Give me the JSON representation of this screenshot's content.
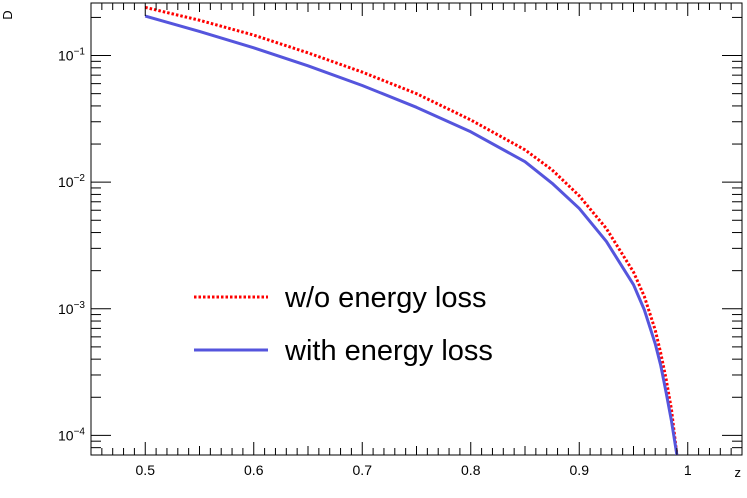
{
  "chart_data": {
    "type": "line",
    "xlabel": "z",
    "ylabel": "D",
    "xlim": [
      0.45,
      1.05
    ],
    "ylim": [
      7e-05,
      0.26
    ],
    "yscale": "log",
    "grid": false,
    "legend_position": "center",
    "x_ticks": [
      {
        "value": 0.5,
        "label": "0.5"
      },
      {
        "value": 0.6,
        "label": "0.6"
      },
      {
        "value": 0.7,
        "label": "0.7"
      },
      {
        "value": 0.8,
        "label": "0.8"
      },
      {
        "value": 0.9,
        "label": "0.9"
      },
      {
        "value": 1.0,
        "label": "1"
      }
    ],
    "y_ticks": [
      {
        "value": 0.0001,
        "base": "10",
        "exp": "−4"
      },
      {
        "value": 0.001,
        "base": "10",
        "exp": "−3"
      },
      {
        "value": 0.01,
        "base": "10",
        "exp": "−2"
      },
      {
        "value": 0.1,
        "base": "10",
        "exp": "−1"
      }
    ],
    "series": [
      {
        "name": "w/o energy loss",
        "color": "#ff0000",
        "style": "dotted",
        "x": [
          0.5,
          0.55,
          0.6,
          0.65,
          0.7,
          0.75,
          0.8,
          0.85,
          0.875,
          0.9,
          0.925,
          0.95,
          0.96,
          0.97,
          0.975,
          0.98,
          0.985,
          0.99
        ],
        "y": [
          0.24,
          0.19,
          0.145,
          0.105,
          0.074,
          0.05,
          0.031,
          0.018,
          0.0125,
          0.0078,
          0.0043,
          0.00195,
          0.00125,
          0.00068,
          0.00045,
          0.00028,
          0.00016,
          7e-05
        ]
      },
      {
        "name": "with energy loss",
        "color": "#5555dd",
        "style": "solid",
        "x": [
          0.5,
          0.55,
          0.6,
          0.65,
          0.7,
          0.75,
          0.8,
          0.85,
          0.875,
          0.9,
          0.925,
          0.95,
          0.96,
          0.97,
          0.975,
          0.98,
          0.985,
          0.99
        ],
        "y": [
          0.205,
          0.155,
          0.115,
          0.083,
          0.058,
          0.039,
          0.025,
          0.0145,
          0.0098,
          0.0062,
          0.0034,
          0.00155,
          0.00098,
          0.00053,
          0.00036,
          0.00022,
          0.00013,
          7e-05
        ]
      }
    ]
  }
}
